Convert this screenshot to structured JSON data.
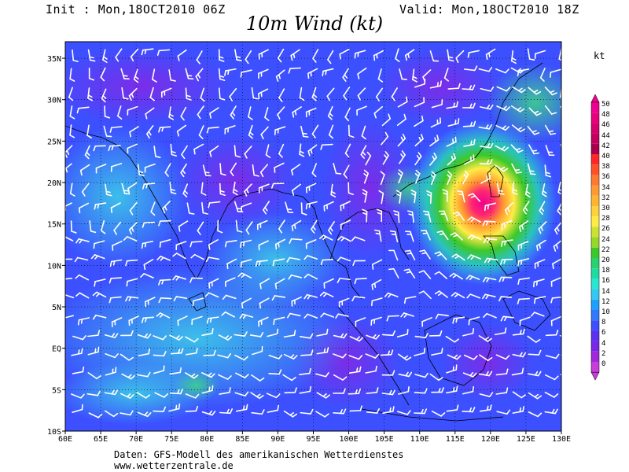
{
  "header": {
    "init": "Init : Mon,18OCT2010 06Z",
    "valid": "Valid: Mon,18OCT2010 18Z",
    "title": "10m Wind (kt)"
  },
  "map": {
    "lon_range": [
      60,
      130
    ],
    "lat_range": [
      -10,
      37
    ],
    "lat_labels": [
      "35N",
      "30N",
      "25N",
      "20N",
      "15N",
      "10N",
      "5N",
      "EQ",
      "5S",
      "10S"
    ],
    "lon_labels": [
      "60E",
      "65E",
      "70E",
      "75E",
      "80E",
      "85E",
      "90E",
      "95E",
      "100E",
      "105E",
      "110E",
      "115E",
      "120E",
      "125E",
      "130E"
    ],
    "storm_center": {
      "lon": 119.5,
      "lat": 19.2
    }
  },
  "colorbar": {
    "unit": "kt",
    "labels": [
      "50",
      "48",
      "46",
      "44",
      "42",
      "40",
      "38",
      "36",
      "34",
      "32",
      "30",
      "28",
      "26",
      "24",
      "22",
      "20",
      "18",
      "16",
      "14",
      "12",
      "10",
      "8",
      "6",
      "4",
      "2",
      "0"
    ],
    "colors": [
      "#f00090",
      "#e8007e",
      "#d6006c",
      "#c0005c",
      "#a8004c",
      "#ff2828",
      "#ff5028",
      "#ff7832",
      "#ff9a32",
      "#ffb432",
      "#ffd23c",
      "#ffeb46",
      "#cde132",
      "#96d728",
      "#3cc828",
      "#28d26e",
      "#1edca0",
      "#28e6d2",
      "#32c8f0",
      "#1ea0ff",
      "#3278ff",
      "#3c50ff",
      "#5a32f0",
      "#7828e6",
      "#a028dc",
      "#c83cdc"
    ]
  },
  "footer": {
    "line1": "Daten: GFS-Modell des amerikanischen Wetterdienstes",
    "line2": "www.wetterzentrale.de"
  }
}
